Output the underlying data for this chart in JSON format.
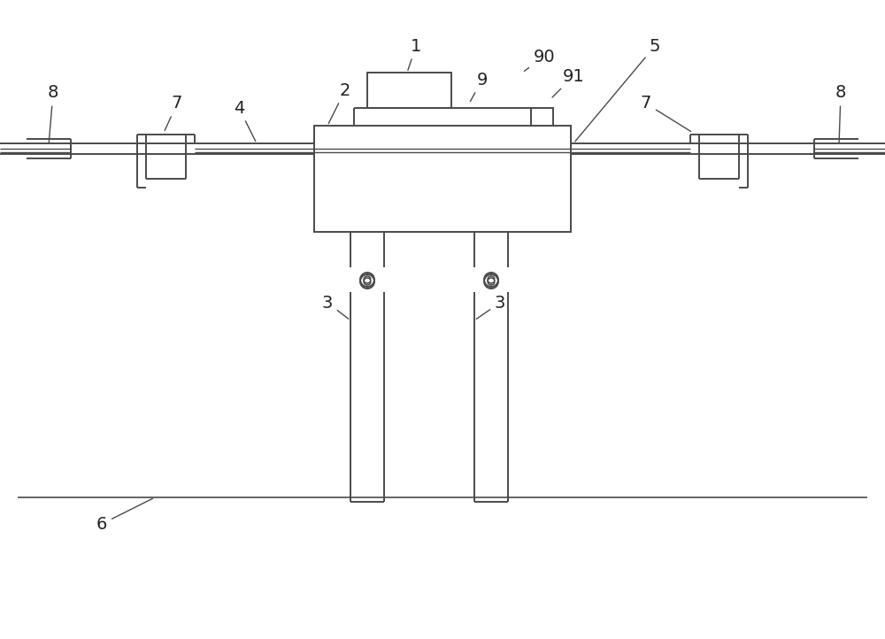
{
  "bg_color": "#ffffff",
  "line_color": "#4a4a4a",
  "line_width": 1.4,
  "fig_width": 10.0,
  "fig_height": 7.22,
  "dpi": 100
}
